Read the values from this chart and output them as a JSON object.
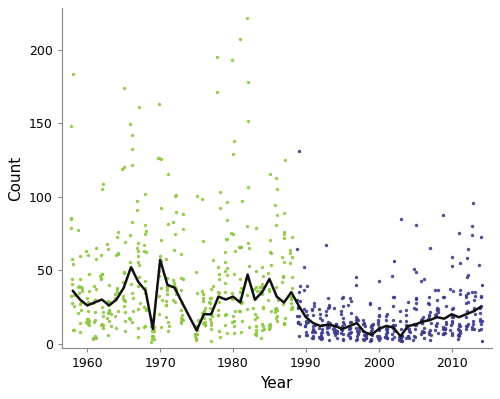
{
  "title": "",
  "xlabel": "Year",
  "ylabel": "Count",
  "pre_color": "#8dc63f",
  "post_color": "#3c3c8c",
  "mean_color": "#111111",
  "mean_lw": 1.8,
  "dot_size": 6,
  "dot_alpha": 0.9,
  "n_sites": 15,
  "xlim": [
    1956.5,
    2015.5
  ],
  "ylim": [
    -3,
    228
  ],
  "yticks": [
    0,
    50,
    100,
    150,
    200
  ],
  "xticks": [
    1960,
    1970,
    1980,
    1990,
    2000,
    2010
  ],
  "pre_years": [
    1958,
    1959,
    1960,
    1961,
    1962,
    1963,
    1964,
    1965,
    1966,
    1967,
    1968,
    1969,
    1970,
    1971,
    1972,
    1973,
    1975,
    1976,
    1977,
    1978,
    1979,
    1980,
    1981,
    1982,
    1983,
    1984,
    1985,
    1986,
    1987,
    1988
  ],
  "post_years": [
    1989,
    1990,
    1991,
    1992,
    1993,
    1994,
    1995,
    1996,
    1997,
    1998,
    1999,
    2000,
    2001,
    2002,
    2003,
    2004,
    2005,
    2006,
    2007,
    2008,
    2009,
    2010,
    2011,
    2012,
    2013,
    2014
  ],
  "mean_years": [
    1958,
    1959,
    1960,
    1961,
    1962,
    1963,
    1964,
    1965,
    1966,
    1967,
    1968,
    1969,
    1970,
    1971,
    1972,
    1973,
    1975,
    1976,
    1977,
    1978,
    1979,
    1980,
    1981,
    1982,
    1983,
    1984,
    1985,
    1986,
    1987,
    1988,
    1989,
    1990,
    1991,
    1992,
    1993,
    1994,
    1995,
    1996,
    1997,
    1998,
    1999,
    2000,
    2001,
    2002,
    2003,
    2004,
    2005,
    2006,
    2007,
    2008,
    2009,
    2010,
    2011,
    2012,
    2013,
    2014
  ],
  "mean_values": [
    36,
    30,
    26,
    28,
    30,
    26,
    30,
    38,
    52,
    42,
    36,
    10,
    57,
    40,
    38,
    28,
    9,
    20,
    20,
    32,
    30,
    32,
    28,
    47,
    30,
    35,
    44,
    32,
    28,
    35,
    26,
    18,
    14,
    12,
    13,
    12,
    10,
    12,
    14,
    8,
    6,
    10,
    12,
    11,
    5,
    12,
    13,
    15,
    16,
    18,
    17,
    20,
    18,
    20,
    22,
    25
  ],
  "seed": 17
}
